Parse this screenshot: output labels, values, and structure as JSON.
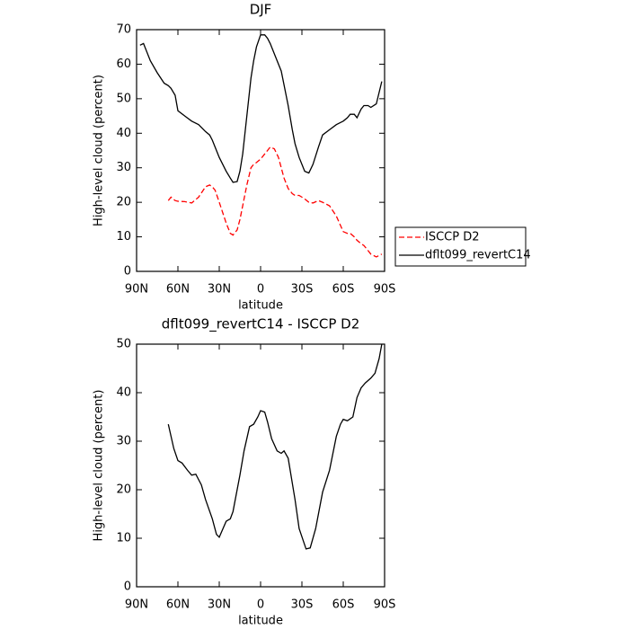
{
  "chart_data": [
    {
      "type": "line",
      "title": "DJF",
      "x_label": "latitude",
      "y_label": "High-level cloud (percent)",
      "x": [
        87.5,
        85,
        80,
        75,
        70,
        67,
        65,
        62,
        60,
        55,
        50,
        45,
        40,
        37,
        35,
        33,
        30,
        25,
        22,
        20,
        17,
        15,
        13,
        10,
        7,
        5,
        3,
        0,
        -3,
        -5,
        -7,
        -10,
        -13,
        -15,
        -17,
        -20,
        -23,
        -25,
        -28,
        -32,
        -35,
        -38,
        -42,
        -45,
        -50,
        -55,
        -60,
        -63,
        -65,
        -68,
        -70,
        -73,
        -75,
        -78,
        -80,
        -84,
        -88
      ],
      "series": [
        {
          "name": "ISCCP D2",
          "color": "#ff0000",
          "line_style": "dashed",
          "values": [
            null,
            null,
            null,
            null,
            null,
            20.5,
            21.5,
            20.5,
            20.3,
            20.2,
            19.8,
            21.5,
            24.5,
            25,
            24.5,
            23.5,
            20,
            14,
            11,
            10.5,
            12,
            15,
            19,
            25,
            30,
            31,
            31.5,
            32.5,
            34,
            35,
            36,
            35.5,
            33,
            30,
            27,
            24,
            22.5,
            22,
            22,
            21,
            20,
            19.8,
            20.5,
            20,
            19,
            16,
            11.5,
            11,
            11,
            10,
            9,
            8,
            7.5,
            6,
            5,
            4.2,
            5
          ]
        },
        {
          "name": "dflt099_revertC14",
          "color": "#000000",
          "line_style": "solid",
          "values": [
            65.5,
            66,
            61,
            57.5,
            54.5,
            53.8,
            53,
            51,
            46.5,
            45,
            43.5,
            42.5,
            40.5,
            39.5,
            38,
            36,
            33,
            29,
            27,
            25.8,
            26,
            29,
            34,
            45,
            56,
            61,
            65,
            68.5,
            68.5,
            67.5,
            66,
            63,
            60,
            58,
            54,
            48,
            41,
            37,
            33,
            29,
            28.5,
            31,
            36,
            39.5,
            41,
            42.5,
            43.5,
            44.5,
            45.5,
            45.5,
            44.5,
            47,
            48,
            48,
            47.5,
            48.5,
            55
          ]
        }
      ],
      "xlim": [
        90,
        -90
      ],
      "xticks": [
        {
          "value": 90,
          "label": "90N"
        },
        {
          "value": 60,
          "label": "60N"
        },
        {
          "value": 30,
          "label": "30N"
        },
        0,
        {
          "value": -30,
          "label": "30S"
        },
        {
          "value": -60,
          "label": "60S"
        },
        {
          "value": -90,
          "label": "90S"
        }
      ],
      "ylim": [
        0,
        70
      ],
      "yticks": [
        0,
        10,
        20,
        30,
        40,
        50,
        60,
        70
      ],
      "legend": "right"
    },
    {
      "type": "line",
      "title": "dflt099_revertC14 - ISCCP D2",
      "x_label": "latitude",
      "y_label": "High-level cloud (percent)",
      "x": [
        67,
        63,
        60,
        57,
        53,
        50,
        47,
        43,
        40,
        35,
        32,
        30,
        25,
        22,
        20,
        15,
        12,
        8,
        5,
        2,
        0,
        -3,
        -5,
        -8,
        -12,
        -15,
        -17,
        -20,
        -25,
        -28,
        -33,
        -36,
        -40,
        -45,
        -50,
        -55,
        -58,
        -60,
        -63,
        -67,
        -70,
        -73,
        -76,
        -80,
        -83,
        -86,
        -88
      ],
      "series": [
        {
          "color": "#000000",
          "line_style": "solid",
          "values": [
            33.5,
            28.5,
            26,
            25.5,
            24,
            23,
            23.2,
            21,
            18,
            14,
            10.8,
            10.2,
            13.5,
            14,
            15.5,
            23,
            28,
            33,
            33.5,
            35,
            36.3,
            36,
            34,
            30.5,
            28,
            27.5,
            28,
            26.5,
            18,
            12,
            7.8,
            8,
            12,
            19.5,
            24,
            31,
            33.5,
            34.5,
            34.2,
            35,
            39,
            41,
            42,
            43,
            44,
            47,
            50
          ]
        }
      ],
      "xlim": [
        90,
        -90
      ],
      "xticks": [
        {
          "value": 90,
          "label": "90N"
        },
        {
          "value": 60,
          "label": "60N"
        },
        {
          "value": 30,
          "label": "30N"
        },
        0,
        {
          "value": -30,
          "label": "30S"
        },
        {
          "value": -60,
          "label": "60S"
        },
        {
          "value": -90,
          "label": "90S"
        }
      ],
      "ylim": [
        0,
        50
      ],
      "yticks": [
        0,
        10,
        20,
        30,
        40,
        50
      ]
    }
  ]
}
